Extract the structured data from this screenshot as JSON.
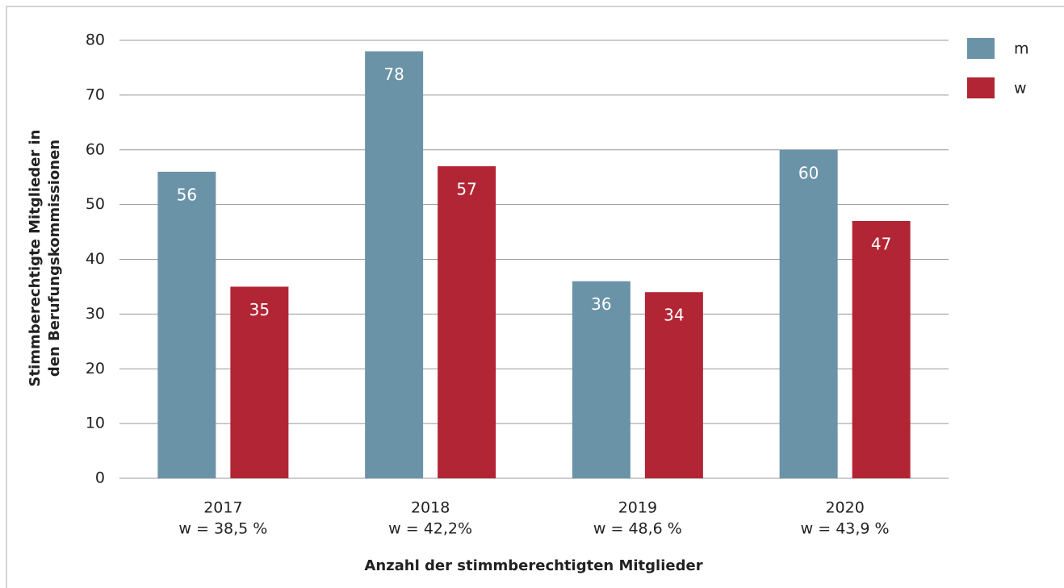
{
  "chart_data": {
    "type": "bar",
    "categories": [
      "2017",
      "2018",
      "2019",
      "2020"
    ],
    "category_sublabels": [
      "w = 38,5 %",
      "w = 42,2%",
      "w = 48,6 %",
      "w = 43,9 %"
    ],
    "series": [
      {
        "name": "m",
        "color": "#6b93a8",
        "values": [
          56,
          78,
          36,
          60
        ]
      },
      {
        "name": "w",
        "color": "#b22534",
        "values": [
          35,
          57,
          34,
          47
        ]
      }
    ],
    "x_label": "Anzahl der stimmberechtigten Mitglieder",
    "y_label": [
      "Stimmberechtigte Mitglieder in",
      "den Berufungskommissionen"
    ],
    "ylim": [
      0,
      80
    ],
    "yticks": [
      0,
      10,
      20,
      30,
      40,
      50,
      60,
      70,
      80
    ],
    "grid": true,
    "legend": "top-right"
  }
}
